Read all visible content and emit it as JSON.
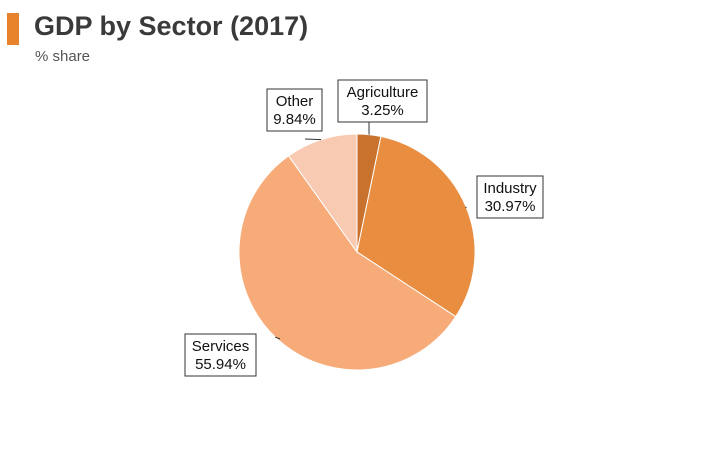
{
  "header": {
    "title": "GDP by Sector (2017)",
    "subtitle": "% share",
    "accent_color": "#e8822b"
  },
  "chart_data": {
    "type": "pie",
    "title": "GDP by Sector (2017)",
    "subtitle": "% share",
    "slices": [
      {
        "name": "Agriculture",
        "value": 3.25,
        "label": "3.25%",
        "color": "#c8722e"
      },
      {
        "name": "Industry",
        "value": 30.97,
        "label": "30.97%",
        "color": "#e98e40"
      },
      {
        "name": "Services",
        "value": 55.94,
        "label": "55.94%",
        "color": "#f7ab78"
      },
      {
        "name": "Other",
        "value": 9.84,
        "label": "9.84%",
        "color": "#f9cab2"
      }
    ],
    "start_angle": "12 o'clock, clockwise"
  }
}
